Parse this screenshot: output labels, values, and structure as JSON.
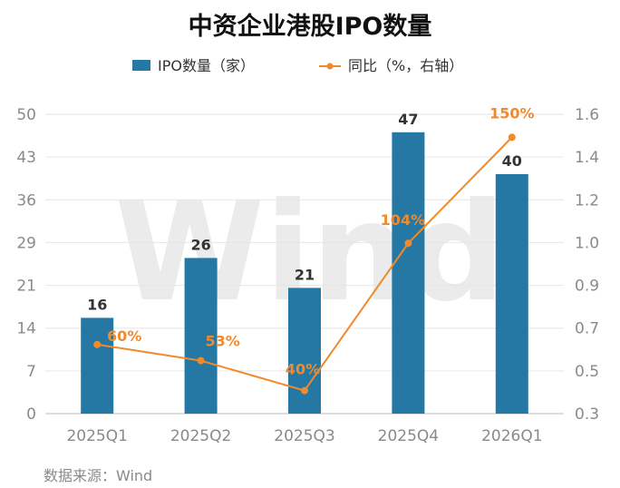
{
  "chart_data": {
    "type": "bar+line",
    "title": "中资企业港股IPO数量",
    "categories": [
      "2025Q1",
      "2025Q2",
      "2025Q3",
      "2025Q4",
      "2026Q1"
    ],
    "series": [
      {
        "name": "IPO数量（家）",
        "type": "bar",
        "axis": "left",
        "color": "#2577a4",
        "values": [
          16,
          26,
          21,
          47,
          40
        ],
        "labels": [
          "16",
          "26",
          "21",
          "47",
          "40"
        ]
      },
      {
        "name": "同比（%，右轴）",
        "type": "line",
        "axis": "right",
        "color": "#f08a2c",
        "values": [
          0.6,
          0.53,
          0.4,
          1.04,
          1.5
        ],
        "labels": [
          "60%",
          "53%",
          "40%",
          "104%",
          "150%"
        ]
      }
    ],
    "left_axis": {
      "min": 0,
      "max": 50,
      "ticks": [
        0,
        7,
        14,
        21,
        29,
        36,
        43,
        50
      ],
      "tick_labels": [
        "0",
        "7",
        "14",
        "21",
        "29",
        "36",
        "43",
        "50"
      ]
    },
    "right_axis": {
      "min": 0.3,
      "max": 1.6,
      "ticks": [
        0.3,
        0.5,
        0.7,
        0.9,
        1.0,
        1.2,
        1.4,
        1.6
      ],
      "tick_labels": [
        "0.3",
        "0.5",
        "0.7",
        "0.9",
        "1.0",
        "1.2",
        "1.4",
        "1.6"
      ]
    },
    "gridlines": true,
    "legend": "top-center",
    "source": "数据来源：Wind",
    "watermark": "Wind"
  }
}
